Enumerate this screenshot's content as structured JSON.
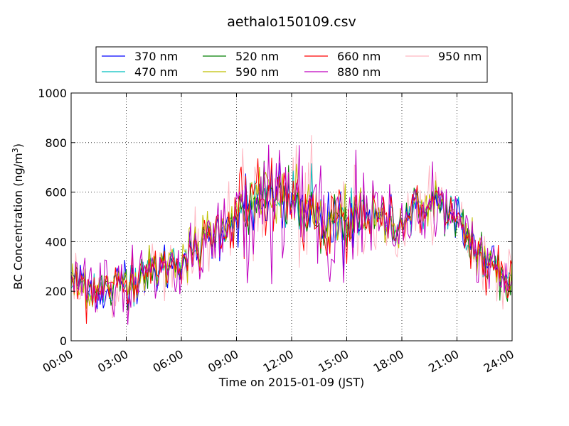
{
  "chart_data": {
    "type": "line",
    "title": "aethalo150109.csv",
    "xlabel": "Time on 2015-01-09 (JST)",
    "ylabel": "BC Concentration (ng/m",
    "ylabel_sup": "3",
    "ylabel_end": ")",
    "xlim_hours": [
      0,
      24
    ],
    "ylim": [
      0,
      1000
    ],
    "x_ticks": [
      "00:00",
      "03:00",
      "06:00",
      "09:00",
      "12:00",
      "15:00",
      "18:00",
      "21:00",
      "24:00"
    ],
    "y_ticks": [
      "0",
      "200",
      "400",
      "600",
      "800",
      "1000"
    ],
    "grid": true,
    "legend_position": "top",
    "sample_interval_minutes": 5,
    "series": [
      {
        "name": "370 nm",
        "color": "#0000ff",
        "noise_factor": 1.0
      },
      {
        "name": "470 nm",
        "color": "#00bfbf",
        "noise_factor": 1.0
      },
      {
        "name": "520 nm",
        "color": "#007f00",
        "noise_factor": 1.1
      },
      {
        "name": "590 nm",
        "color": "#bfbf00",
        "noise_factor": 1.2
      },
      {
        "name": "660 nm",
        "color": "#ff0000",
        "noise_factor": 1.3
      },
      {
        "name": "880 nm",
        "color": "#bf00bf",
        "noise_factor": 2.2
      },
      {
        "name": "950 nm",
        "color": "#ffb6c1",
        "noise_factor": 2.0
      }
    ],
    "trend": {
      "hours": [
        0,
        1,
        2,
        3,
        4,
        5,
        6,
        7,
        8,
        9,
        10,
        11,
        12,
        13,
        14,
        15,
        16,
        17,
        18,
        19,
        20,
        21,
        22,
        23,
        24
      ],
      "values": [
        250,
        210,
        200,
        240,
        270,
        300,
        320,
        380,
        450,
        500,
        560,
        590,
        580,
        500,
        480,
        470,
        510,
        480,
        470,
        540,
        560,
        480,
        370,
        300,
        240
      ]
    }
  }
}
